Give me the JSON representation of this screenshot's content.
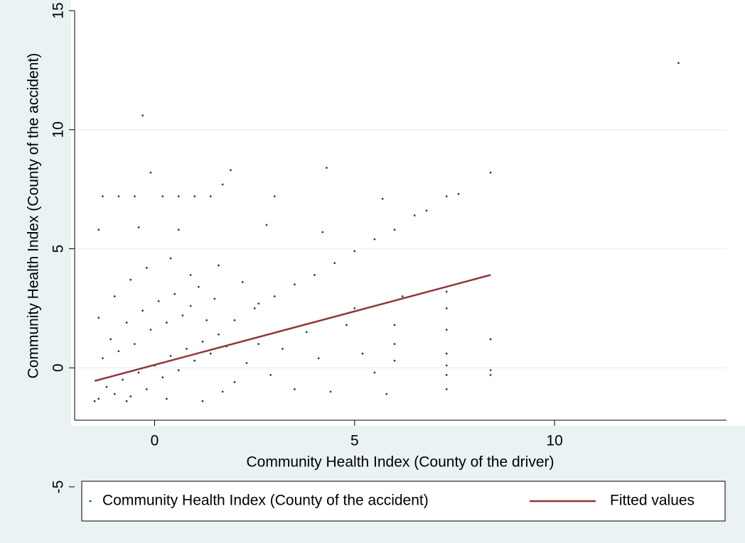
{
  "chart_data": {
    "type": "scatter",
    "x_label": "Community Health Index (County of the driver)",
    "y_label": "Community Health Index (County of the accident)",
    "xlim": [
      -2,
      14.3
    ],
    "ylim": [
      -2.2,
      15
    ],
    "xticks": [
      0,
      5,
      10
    ],
    "yticks": [
      -5,
      0,
      5,
      10,
      15
    ],
    "grid": true,
    "legend": "bottom",
    "series": [
      {
        "name": "Community Health Index (County of the accident)",
        "type": "scatter",
        "color": "#1a476f",
        "x": [
          -1.4,
          -1.2,
          -1.0,
          -0.8,
          -0.6,
          -0.4,
          -0.2,
          0,
          0.2,
          0.4,
          0.6,
          0.8,
          1.0,
          1.2,
          1.4,
          1.6,
          1.8,
          -1.3,
          -1.1,
          -0.9,
          -0.7,
          -0.5,
          -0.3,
          -0.1,
          0.1,
          0.3,
          0.5,
          0.7,
          0.9,
          1.1,
          1.3,
          1.5,
          -1.5,
          -0.7,
          0.3,
          1.2,
          1.7,
          2.0,
          2.3,
          2.6,
          2.9,
          3.2,
          3.5,
          3.8,
          4.1,
          4.4,
          4.8,
          5.2,
          5.5,
          -1.4,
          -1.0,
          -0.6,
          -0.2,
          0.4,
          0.9,
          1.6,
          2.2,
          2.6,
          -1.4,
          -0.4,
          0.6,
          2.8,
          4.2,
          -1.3,
          -0.9,
          -0.5,
          0.2,
          0.6,
          1.0,
          1.4,
          3.0,
          5.7,
          7.3,
          7.6,
          2.0,
          2.5,
          3.0,
          3.5,
          4.0,
          4.5,
          5.0,
          5.5,
          6.0,
          6.5,
          6.8,
          13.1,
          -0.3,
          -0.1,
          1.9,
          4.3,
          8.4,
          1.7,
          6.0,
          6.0,
          6.0,
          5.8,
          7.3,
          7.3,
          7.3,
          7.3,
          7.3,
          7.3,
          7.3,
          8.4,
          8.4,
          8.4,
          6.2,
          5.0
        ],
        "values": [
          -1.3,
          -0.8,
          -1.1,
          -0.5,
          -1.2,
          -0.2,
          -0.9,
          0.1,
          -0.4,
          0.5,
          -0.1,
          0.8,
          0.3,
          1.1,
          0.6,
          1.4,
          0.9,
          0.4,
          1.2,
          0.7,
          1.9,
          1.0,
          2.4,
          1.6,
          2.8,
          1.9,
          3.1,
          2.2,
          2.6,
          3.4,
          2.0,
          2.9,
          -1.4,
          -1.4,
          -1.3,
          -1.4,
          -1.0,
          -0.6,
          0.2,
          1.0,
          -0.3,
          0.8,
          -0.9,
          1.5,
          0.4,
          -1.0,
          1.8,
          0.6,
          -0.2,
          2.1,
          3.0,
          3.7,
          4.2,
          4.6,
          3.9,
          4.3,
          3.6,
          2.7,
          5.8,
          5.9,
          5.8,
          6.0,
          5.7,
          7.2,
          7.2,
          7.2,
          7.2,
          7.2,
          7.2,
          7.2,
          7.2,
          7.1,
          7.2,
          7.3,
          2.0,
          2.5,
          3.0,
          3.5,
          3.9,
          4.4,
          4.9,
          5.4,
          5.8,
          6.4,
          6.6,
          12.8,
          10.6,
          8.2,
          8.3,
          8.4,
          8.2,
          7.7,
          1.8,
          1.0,
          0.3,
          -1.1,
          3.2,
          2.5,
          1.6,
          0.6,
          0.1,
          -0.3,
          -0.9,
          1.2,
          -0.1,
          -0.3,
          3.0,
          2.5
        ]
      },
      {
        "name": "Fitted values",
        "type": "line",
        "color": "#90353b",
        "x": [
          -1.5,
          8.4
        ],
        "values": [
          -0.55,
          3.9
        ]
      }
    ]
  }
}
